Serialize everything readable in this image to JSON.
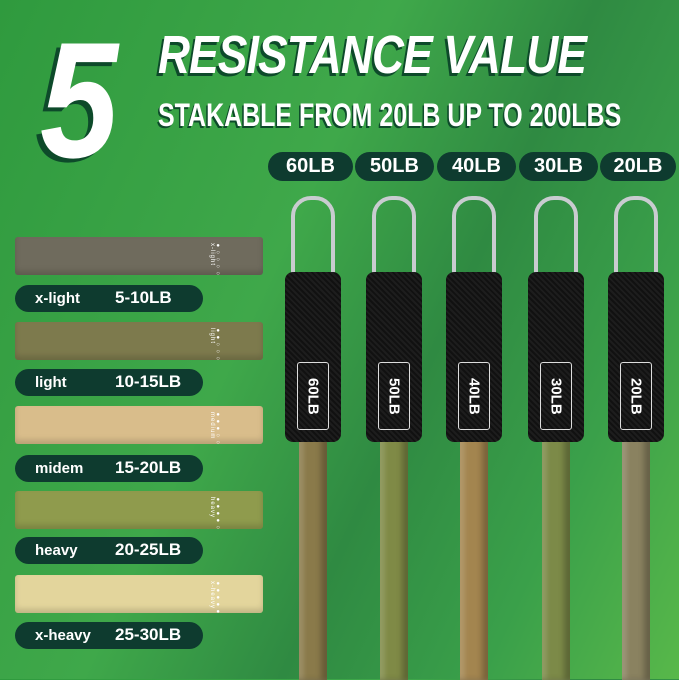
{
  "headline": {
    "number": "5",
    "title": "RESISTANCE VALUE",
    "subtitle": "STAKABLE FROM 20LB UP TO 200LBS"
  },
  "tube_labels": [
    "60LB",
    "50LB",
    "40LB",
    "30LB",
    "20LB"
  ],
  "tube_colors": [
    "#8a7a4a",
    "#7f8a46",
    "#a3854f",
    "#7c8a48",
    "#8a8260"
  ],
  "bands": [
    {
      "name": "x-light",
      "range": "5-10LB",
      "color": "#6f6b5d",
      "print": "●○○○○ x-light"
    },
    {
      "name": "light",
      "range": "10-15LB",
      "color": "#7d7a4d",
      "print": "●●○○○ light"
    },
    {
      "name": "midem",
      "range": "15-20LB",
      "color": "#d9bd8b",
      "print": "●●●○○ medium"
    },
    {
      "name": "heavy",
      "range": "20-25LB",
      "color": "#8f9b4d",
      "print": "●●●●○ heavy"
    },
    {
      "name": "x-heavy",
      "range": "25-30LB",
      "color": "#e3d59c",
      "print": "●●●●● x-heavy"
    }
  ]
}
